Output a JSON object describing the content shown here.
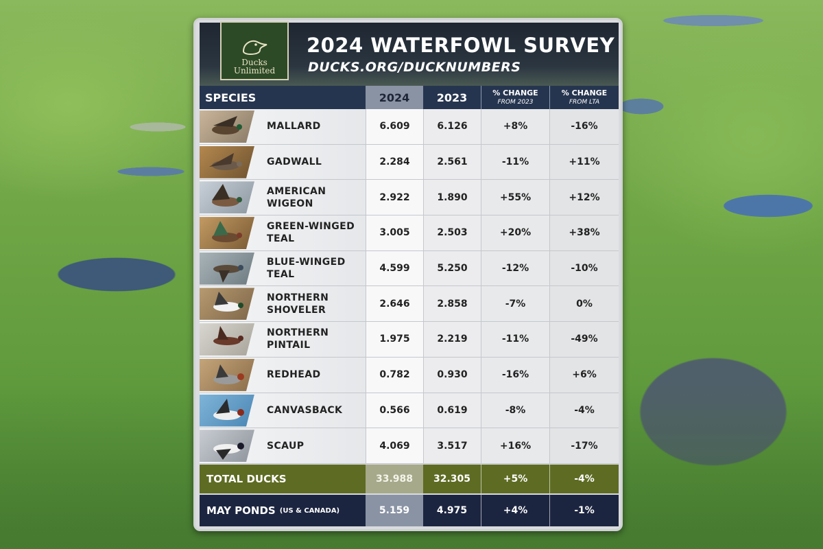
{
  "header": {
    "logo_line1": "Ducks",
    "logo_line2": "Unlimited",
    "title": "2024 WATERFOWL SURVEY",
    "url": "DUCKS.ORG/DUCKNUMBERS"
  },
  "columns": {
    "species": "SPECIES",
    "y2024": "2024",
    "y2023": "2023",
    "pc2023_main": "% CHANGE",
    "pc2023_sub": "FROM 2023",
    "pclta_main": "% CHANGE",
    "pclta_sub": "FROM LTA"
  },
  "rows": [
    {
      "name": "MALLARD",
      "v2024": "6.609",
      "v2023": "6.126",
      "pc2023": "+8%",
      "pclta": "-16%"
    },
    {
      "name": "GADWALL",
      "v2024": "2.284",
      "v2023": "2.561",
      "pc2023": "-11%",
      "pclta": "+11%"
    },
    {
      "name": "AMERICAN WIGEON",
      "v2024": "2.922",
      "v2023": "1.890",
      "pc2023": "+55%",
      "pclta": "+12%"
    },
    {
      "name": "GREEN-WINGED TEAL",
      "v2024": "3.005",
      "v2023": "2.503",
      "pc2023": "+20%",
      "pclta": "+38%"
    },
    {
      "name": "BLUE-WINGED TEAL",
      "v2024": "4.599",
      "v2023": "5.250",
      "pc2023": "-12%",
      "pclta": "-10%"
    },
    {
      "name": "NORTHERN SHOVELER",
      "v2024": "2.646",
      "v2023": "2.858",
      "pc2023": "-7%",
      "pclta": "0%"
    },
    {
      "name": "NORTHERN PINTAIL",
      "v2024": "1.975",
      "v2023": "2.219",
      "pc2023": "-11%",
      "pclta": "-49%"
    },
    {
      "name": "REDHEAD",
      "v2024": "0.782",
      "v2023": "0.930",
      "pc2023": "-16%",
      "pclta": "+6%"
    },
    {
      "name": "CANVASBACK",
      "v2024": "0.566",
      "v2023": "0.619",
      "pc2023": "-8%",
      "pclta": "-4%"
    },
    {
      "name": "SCAUP",
      "v2024": "4.069",
      "v2023": "3.517",
      "pc2023": "+16%",
      "pclta": "-17%"
    }
  ],
  "total": {
    "label": "TOTAL DUCKS",
    "v2024": "33.988",
    "v2023": "32.305",
    "pc2023": "+5%",
    "pclta": "-4%"
  },
  "ponds": {
    "label": "MAY PONDS",
    "note": "(US & CANADA)",
    "v2024": "5.159",
    "v2023": "4.975",
    "pc2023": "+4%",
    "pclta": "-1%"
  },
  "colors": {
    "header_bar": "#26354f",
    "total_bar": "#5e6b23",
    "ponds_bar": "#1c2540",
    "logo_green": "#2d4a27"
  }
}
